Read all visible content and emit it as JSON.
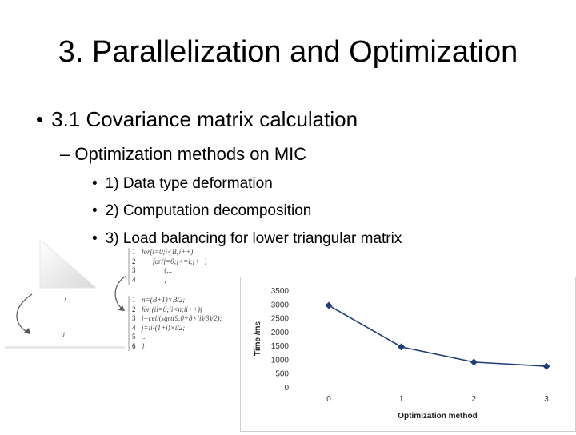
{
  "slide": {
    "title": "3.  Parallelization and Optimization",
    "bullet_l1": "3.1 Covariance matrix calculation",
    "bullet_l2": "Optimization methods on MIC",
    "bullets_l3": [
      "1) Data type deformation",
      "2) Computation decomposition",
      "3) Load balancing for lower triangular matrix"
    ],
    "bullet_char": "•",
    "dash_char": "–"
  },
  "code_top": {
    "lines": [
      "for(i=0;i<B;i++)",
      "for(j=0;j<=i;j++)",
      "{...",
      "}"
    ],
    "numbers": [
      "1",
      "2",
      "3",
      "4"
    ]
  },
  "code_bottom": {
    "lines": [
      "n=(B+1)×B/2;",
      "for (ii=0;ii<n;ii++){",
      "i=ceil(sqrt(9.0+8×ii)/3)/2);",
      "j=ii-(1+i)×i/2;",
      "...",
      "}"
    ],
    "numbers": [
      "1",
      "2",
      "3",
      "4",
      "5",
      "6"
    ]
  },
  "left_labels": [
    "}",
    "ii"
  ],
  "chart_data": {
    "type": "line",
    "x": [
      0,
      1,
      2,
      3
    ],
    "y": [
      2950,
      1450,
      900,
      750
    ],
    "xlabel": "Optimization method",
    "ylabel": "Time /ms",
    "ylim": [
      0,
      3500
    ],
    "yticks": [
      0,
      500,
      1000,
      1500,
      2000,
      2500,
      3000,
      3500
    ],
    "xticks": [
      0,
      1,
      2,
      3
    ],
    "grid": false,
    "line_color": "#1f3d7a",
    "marker": "diamond"
  }
}
